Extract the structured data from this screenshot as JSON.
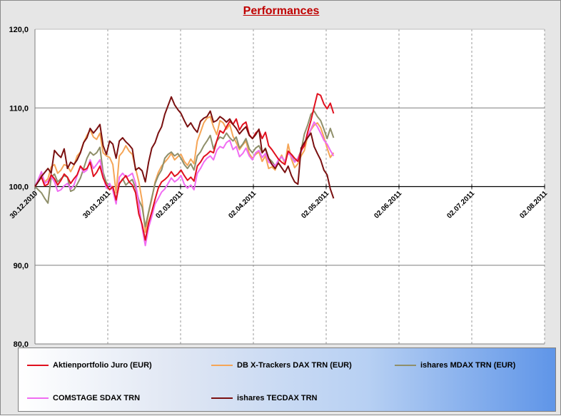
{
  "chart_data": {
    "type": "line",
    "title": "Performances",
    "xlabel": "",
    "ylabel": "",
    "ylim": [
      80,
      120
    ],
    "y_ticks": [
      "80,0",
      "90,0",
      "100,0",
      "110,0",
      "120,0"
    ],
    "x_ticks": [
      "30.12.2010",
      "30.01.2011",
      "02.03.2011",
      "02.04.2011",
      "02.05.2011",
      "02.06.2011",
      "02.07.2011",
      "02.08.2011"
    ],
    "grid": "vertical dashed, horizontal at 90 and 110",
    "legend_position": "bottom",
    "series": [
      {
        "name": "Aktienportfolio Juro (EUR)",
        "color": "#e0101e",
        "values": [
          100.0,
          100.6,
          101.2,
          100.1,
          100.3,
          101.5,
          101.0,
          100.2,
          100.8,
          101.6,
          101.2,
          100.4,
          101.0,
          101.5,
          102.6,
          102.1,
          102.3,
          103.1,
          101.3,
          101.8,
          102.6,
          101.1,
          100.2,
          99.6,
          100.0,
          98.3,
          100.4,
          100.9,
          101.4,
          100.6,
          100.2,
          99.2,
          96.5,
          95.2,
          93.2,
          95.4,
          96.8,
          98.4,
          99.8,
          100.6,
          100.9,
          101.3,
          101.9,
          101.3,
          101.6,
          102.1,
          101.4,
          100.8,
          101.2,
          100.7,
          102.6,
          103.1,
          103.8,
          104.1,
          104.5,
          104.3,
          105.8,
          107.1,
          106.8,
          107.6,
          108.3,
          107.9,
          108.6,
          107.2,
          107.9,
          108.2,
          106.6,
          106.1,
          106.8,
          107.2,
          106.1,
          106.9,
          105.2,
          104.7,
          104.1,
          103.5,
          103.1,
          102.8,
          104.5,
          104.1,
          103.6,
          103.2,
          104.6,
          105.2,
          106.9,
          108.4,
          110.1,
          111.8,
          111.6,
          110.5,
          109.9,
          110.6,
          109.3
        ]
      },
      {
        "name": "DB X-Trackers DAX TRN (EUR)",
        "color": "#f5a556",
        "values": [
          100.0,
          100.9,
          101.6,
          100.6,
          101.0,
          102.5,
          102.8,
          101.7,
          102.1,
          102.8,
          102.6,
          101.9,
          102.7,
          103.9,
          104.4,
          105.6,
          106.5,
          107.2,
          106.3,
          106.0,
          106.8,
          104.3,
          103.9,
          103.7,
          102.8,
          99.2,
          103.9,
          104.4,
          105.2,
          104.5,
          104.1,
          102.3,
          100.6,
          98.2,
          94.2,
          96.6,
          98.4,
          100.6,
          101.8,
          102.6,
          103.1,
          103.6,
          104.2,
          103.4,
          103.8,
          104.1,
          103.2,
          102.7,
          103.5,
          102.9,
          105.8,
          106.9,
          108.1,
          108.7,
          108.9,
          107.6,
          106.6,
          108.4,
          108.1,
          107.3,
          107.9,
          106.4,
          105.6,
          104.7,
          105.3,
          105.8,
          104.2,
          103.6,
          104.1,
          104.4,
          103.2,
          103.9,
          102.3,
          102.5,
          102.1,
          103.2,
          104.0,
          102.9,
          105.4,
          103.5,
          102.4,
          102.9,
          103.9,
          104.6,
          106.4,
          107.2,
          107.8,
          108.1,
          107.5,
          106.3,
          104.9,
          103.7,
          104.3
        ]
      },
      {
        "name": "ishares MDAX TRN (EUR)",
        "color": "#8f8f6a",
        "values": [
          100.0,
          99.6,
          99.2,
          98.5,
          97.9,
          101.2,
          101.6,
          100.6,
          101.0,
          101.4,
          101.2,
          99.4,
          99.6,
          100.3,
          101.1,
          102.3,
          103.6,
          104.4,
          104.0,
          104.3,
          105.0,
          101.8,
          100.5,
          100.2,
          99.8,
          98.4,
          100.3,
          101.0,
          100.2,
          100.6,
          100.9,
          99.8,
          98.3,
          97.4,
          94.9,
          96.8,
          98.6,
          100.4,
          101.4,
          102.1,
          103.6,
          104.1,
          104.4,
          103.9,
          104.2,
          103.6,
          102.8,
          102.3,
          102.9,
          102.1,
          103.9,
          104.4,
          105.2,
          105.8,
          106.5,
          104.8,
          105.8,
          106.3,
          106.1,
          106.8,
          106.2,
          105.8,
          106.3,
          104.9,
          105.4,
          106.1,
          104.8,
          104.3,
          104.9,
          105.2,
          104.3,
          104.9,
          103.6,
          103.2,
          102.6,
          103.3,
          103.8,
          103.2,
          104.4,
          103.9,
          103.2,
          103.6,
          104.6,
          106.7,
          107.8,
          109.2,
          109.6,
          108.9,
          108.4,
          107.3,
          106.1,
          107.4,
          106.2
        ]
      },
      {
        "name": "COMSTAGE SDAX TRN",
        "color": "#f06cf2",
        "values": [
          100.0,
          100.9,
          101.9,
          100.4,
          100.7,
          101.3,
          100.6,
          99.4,
          99.6,
          100.1,
          100.4,
          99.7,
          100.2,
          101.4,
          102.6,
          101.8,
          102.1,
          103.4,
          102.3,
          102.8,
          103.4,
          101.3,
          99.8,
          100.4,
          99.5,
          97.8,
          101.2,
          101.7,
          101.2,
          101.4,
          101.7,
          100.4,
          97.9,
          94.8,
          92.5,
          94.8,
          96.2,
          97.8,
          98.5,
          99.3,
          99.7,
          100.4,
          101.1,
          100.6,
          100.9,
          101.4,
          100.3,
          99.8,
          100.2,
          99.6,
          101.7,
          102.3,
          103.1,
          103.6,
          103.9,
          103.4,
          104.6,
          105.1,
          104.9,
          105.6,
          105.9,
          104.7,
          105.1,
          103.8,
          104.2,
          104.9,
          103.9,
          103.4,
          104.3,
          104.6,
          103.7,
          104.2,
          103.1,
          102.9,
          102.6,
          103.4,
          103.8,
          103.2,
          104.3,
          103.8,
          103.1,
          103.6,
          104.4,
          105.5,
          106.4,
          107.3,
          108.2,
          107.6,
          106.8,
          105.9,
          105.4,
          104.6,
          103.9
        ]
      },
      {
        "name": "ishares TECDAX TRN",
        "color": "#7a1010",
        "values": [
          100.0,
          100.6,
          101.3,
          101.8,
          102.3,
          101.7,
          104.6,
          104.1,
          103.7,
          104.8,
          102.3,
          103.1,
          102.8,
          103.4,
          104.3,
          105.6,
          106.2,
          107.4,
          106.8,
          107.3,
          107.9,
          105.2,
          104.1,
          105.8,
          105.4,
          103.6,
          105.8,
          106.2,
          105.7,
          105.3,
          104.8,
          102.1,
          102.4,
          102.0,
          100.6,
          103.1,
          104.9,
          105.6,
          106.8,
          107.6,
          109.2,
          110.3,
          111.4,
          110.4,
          109.8,
          109.3,
          108.4,
          107.6,
          108.1,
          107.4,
          106.9,
          108.3,
          108.7,
          108.9,
          109.6,
          108.2,
          108.4,
          108.9,
          108.6,
          108.2,
          108.6,
          107.9,
          107.4,
          106.7,
          107.2,
          107.6,
          106.5,
          106.1,
          106.6,
          107.3,
          104.3,
          104.8,
          103.6,
          102.8,
          102.3,
          103.0,
          102.4,
          101.8,
          102.6,
          101.4,
          100.6,
          100.3,
          104.9,
          105.6,
          106.2,
          106.8,
          105.1,
          104.2,
          103.4,
          102.1,
          101.5,
          99.7,
          98.5
        ]
      }
    ]
  }
}
